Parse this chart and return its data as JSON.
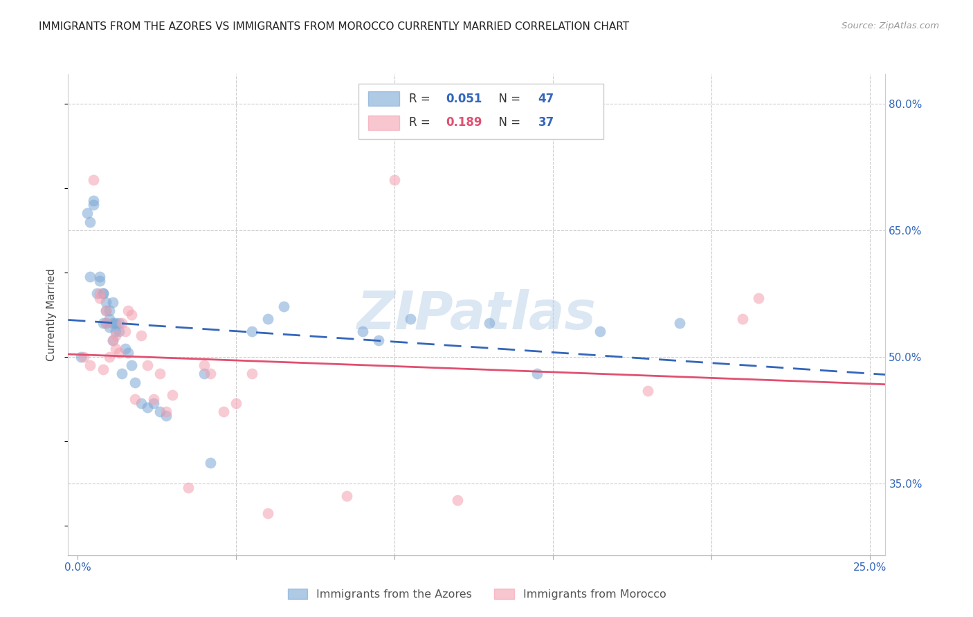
{
  "title": "IMMIGRANTS FROM THE AZORES VS IMMIGRANTS FROM MOROCCO CURRENTLY MARRIED CORRELATION CHART",
  "source": "Source: ZipAtlas.com",
  "ylabel": "Currently Married",
  "xlim": [
    -0.003,
    0.255
  ],
  "ylim": [
    0.265,
    0.835
  ],
  "ytick_vals": [
    0.35,
    0.5,
    0.65,
    0.8
  ],
  "ytick_labels": [
    "35.0%",
    "50.0%",
    "65.0%",
    "80.0%"
  ],
  "xtick_vals": [
    0.0,
    0.05,
    0.1,
    0.15,
    0.2,
    0.25
  ],
  "xtick_labels": [
    "0.0%",
    "",
    "",
    "",
    "",
    "25.0%"
  ],
  "legend_r1": "0.051",
  "legend_n1": "47",
  "legend_r2": "0.189",
  "legend_n2": "37",
  "blue_scatter": "#7BA7D4",
  "pink_scatter": "#F4A0B0",
  "blue_line": "#3366BB",
  "pink_line": "#E05070",
  "watermark_text": "ZIPatlas",
  "watermark_color": "#B8D0E8",
  "grid_color": "#CCCCCC",
  "azores_x": [
    0.001,
    0.003,
    0.004,
    0.004,
    0.005,
    0.005,
    0.006,
    0.007,
    0.007,
    0.008,
    0.008,
    0.008,
    0.009,
    0.009,
    0.009,
    0.01,
    0.01,
    0.01,
    0.011,
    0.011,
    0.011,
    0.012,
    0.012,
    0.013,
    0.013,
    0.014,
    0.015,
    0.016,
    0.017,
    0.018,
    0.02,
    0.022,
    0.024,
    0.026,
    0.028,
    0.04,
    0.042,
    0.055,
    0.06,
    0.065,
    0.09,
    0.095,
    0.105,
    0.13,
    0.145,
    0.165,
    0.19
  ],
  "azores_y": [
    0.5,
    0.67,
    0.66,
    0.595,
    0.685,
    0.68,
    0.575,
    0.595,
    0.59,
    0.575,
    0.575,
    0.54,
    0.565,
    0.555,
    0.54,
    0.555,
    0.545,
    0.535,
    0.565,
    0.54,
    0.52,
    0.54,
    0.53,
    0.54,
    0.53,
    0.48,
    0.51,
    0.505,
    0.49,
    0.47,
    0.445,
    0.44,
    0.445,
    0.435,
    0.43,
    0.48,
    0.375,
    0.53,
    0.545,
    0.56,
    0.53,
    0.52,
    0.545,
    0.54,
    0.48,
    0.53,
    0.54
  ],
  "morocco_x": [
    0.002,
    0.004,
    0.005,
    0.007,
    0.007,
    0.008,
    0.009,
    0.009,
    0.01,
    0.011,
    0.012,
    0.012,
    0.013,
    0.014,
    0.015,
    0.016,
    0.017,
    0.018,
    0.02,
    0.022,
    0.024,
    0.026,
    0.028,
    0.03,
    0.035,
    0.04,
    0.042,
    0.046,
    0.05,
    0.055,
    0.06,
    0.085,
    0.1,
    0.12,
    0.18,
    0.21,
    0.215
  ],
  "morocco_y": [
    0.5,
    0.49,
    0.71,
    0.575,
    0.57,
    0.485,
    0.555,
    0.54,
    0.5,
    0.52,
    0.525,
    0.51,
    0.505,
    0.54,
    0.53,
    0.555,
    0.55,
    0.45,
    0.525,
    0.49,
    0.45,
    0.48,
    0.435,
    0.455,
    0.345,
    0.49,
    0.48,
    0.435,
    0.445,
    0.48,
    0.315,
    0.335,
    0.71,
    0.33,
    0.46,
    0.545,
    0.57
  ]
}
